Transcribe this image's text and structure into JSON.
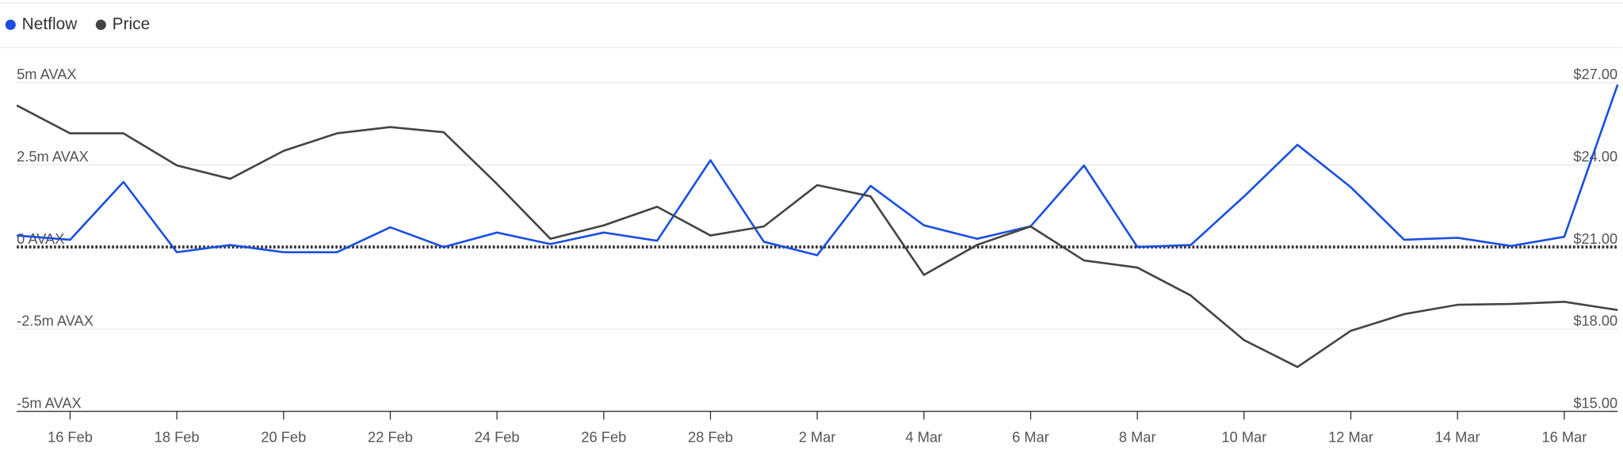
{
  "chart_data": {
    "type": "line",
    "categories": [
      null,
      "16 Feb",
      null,
      "18 Feb",
      null,
      "20 Feb",
      null,
      "22 Feb",
      null,
      "24 Feb",
      null,
      "26 Feb",
      null,
      "28 Feb",
      null,
      "2 Mar",
      null,
      "4 Mar",
      null,
      "6 Mar",
      null,
      "8 Mar",
      null,
      "10 Mar",
      null,
      "12 Mar",
      null,
      "14 Mar",
      null,
      "16 Mar",
      null
    ],
    "series": [
      {
        "name": "Netflow",
        "color": "#1a4fe0",
        "values": [
          350000,
          220000,
          1980000,
          -160000,
          60000,
          -160000,
          -160000,
          600000,
          0,
          440000,
          90000,
          440000,
          190000,
          2640000,
          160000,
          -250000,
          1860000,
          660000,
          250000,
          630000,
          2480000,
          0,
          60000,
          1540000,
          3110000,
          1820000,
          220000,
          280000,
          30000,
          310000,
          4940000
        ]
      },
      {
        "name": "Price",
        "color": "#444444",
        "axis": "y2",
        "values": [
          26.17,
          25.15,
          25.15,
          23.98,
          23.49,
          24.51,
          25.15,
          25.38,
          25.19,
          23.3,
          21.3,
          21.79,
          22.47,
          21.42,
          21.75,
          23.26,
          22.85,
          19.98,
          21.08,
          21.75,
          20.51,
          20.25,
          19.23,
          17.6,
          16.62,
          17.94,
          18.55,
          18.89,
          18.92,
          19.0,
          18.7
        ]
      }
    ],
    "ylim": [
      -5000000,
      5000000
    ],
    "yticks": [
      {
        "value": 5000000,
        "label": "5m AVAX"
      },
      {
        "value": 2500000,
        "label": "2.5m AVAX"
      },
      {
        "value": 0,
        "label": "0 AVAX"
      },
      {
        "value": -2500000,
        "label": "-2.5m AVAX"
      },
      {
        "value": -5000000,
        "label": "-5m AVAX"
      }
    ],
    "y2lim": [
      15,
      27
    ],
    "y2ticks": [
      {
        "value": 27,
        "label": "$27.00"
      },
      {
        "value": 24,
        "label": "$24.00"
      },
      {
        "value": 21,
        "label": "$21.00"
      },
      {
        "value": 18,
        "label": "$18.00"
      },
      {
        "value": 15,
        "label": "$15.00"
      }
    ],
    "grid": true
  }
}
